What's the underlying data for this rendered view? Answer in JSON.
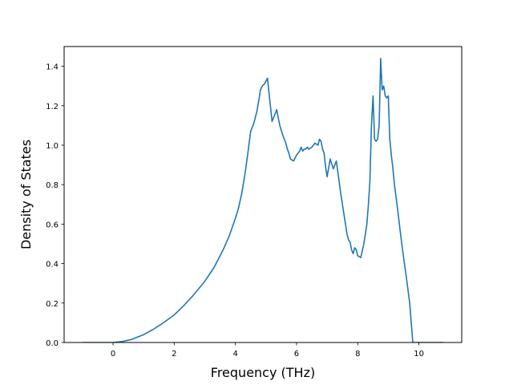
{
  "chart_data": {
    "type": "line",
    "title": "",
    "xlabel": "Frequency (THz)",
    "ylabel": "Density of States",
    "xlim": [
      -1.6,
      11.4
    ],
    "ylim": [
      0.0,
      1.5
    ],
    "xticks": [
      0,
      2,
      4,
      6,
      8,
      10
    ],
    "yticks": [
      0.0,
      0.2,
      0.4,
      0.6,
      0.8,
      1.0,
      1.2,
      1.4
    ],
    "xtick_labels": [
      "0",
      "2",
      "4",
      "6",
      "8",
      "10"
    ],
    "ytick_labels": [
      "0.0",
      "0.2",
      "0.4",
      "0.6",
      "0.8",
      "1.0",
      "1.2",
      "1.4"
    ],
    "grid": false,
    "color": "#1f77b4",
    "series": [
      {
        "x": [
          -1.0,
          -0.5,
          0.0,
          0.3,
          0.6,
          1.0,
          1.3,
          1.6,
          2.0,
          2.3,
          2.6,
          3.0,
          3.3,
          3.6,
          3.8,
          4.0,
          4.1,
          4.2,
          4.3,
          4.4,
          4.5,
          4.6,
          4.7,
          4.78,
          4.82,
          4.88,
          4.95,
          5.05,
          5.2,
          5.35,
          5.45,
          5.55,
          5.65,
          5.7,
          5.75,
          5.8,
          5.9,
          6.0,
          6.1,
          6.15,
          6.2,
          6.25,
          6.3,
          6.35,
          6.4,
          6.5,
          6.6,
          6.7,
          6.75,
          6.8,
          6.85,
          6.9,
          6.95,
          7.0,
          7.1,
          7.2,
          7.3,
          7.45,
          7.55,
          7.6,
          7.65,
          7.7,
          7.75,
          7.8,
          7.85,
          7.9,
          7.95,
          8.0,
          8.1,
          8.2,
          8.3,
          8.35,
          8.4,
          8.45,
          8.5,
          8.55,
          8.6,
          8.65,
          8.7,
          8.75,
          8.8,
          8.85,
          8.9,
          8.95,
          9.0,
          9.05,
          9.1,
          9.15,
          9.2,
          9.3,
          9.4,
          9.5,
          9.6,
          9.7,
          9.8,
          9.85,
          9.9,
          10.2,
          10.8
        ],
        "y": [
          0.0,
          0.0,
          0.0,
          0.005,
          0.015,
          0.04,
          0.065,
          0.095,
          0.14,
          0.185,
          0.235,
          0.31,
          0.38,
          0.47,
          0.54,
          0.63,
          0.68,
          0.75,
          0.84,
          0.95,
          1.07,
          1.11,
          1.17,
          1.24,
          1.28,
          1.3,
          1.31,
          1.34,
          1.12,
          1.18,
          1.1,
          1.05,
          1.01,
          0.98,
          0.96,
          0.93,
          0.92,
          0.95,
          0.97,
          0.99,
          0.97,
          0.98,
          0.98,
          0.99,
          0.98,
          0.99,
          1.01,
          1.0,
          1.03,
          1.02,
          0.98,
          0.96,
          0.89,
          0.84,
          0.93,
          0.88,
          0.92,
          0.75,
          0.65,
          0.6,
          0.55,
          0.52,
          0.51,
          0.47,
          0.45,
          0.48,
          0.47,
          0.44,
          0.43,
          0.5,
          0.6,
          0.7,
          0.82,
          1.1,
          1.25,
          1.03,
          1.02,
          1.03,
          1.1,
          1.44,
          1.28,
          1.3,
          1.25,
          1.24,
          1.25,
          1.03,
          0.95,
          0.88,
          0.8,
          0.68,
          0.55,
          0.43,
          0.32,
          0.2,
          0.0,
          0.0,
          0.0,
          0.0,
          0.0
        ]
      }
    ]
  }
}
